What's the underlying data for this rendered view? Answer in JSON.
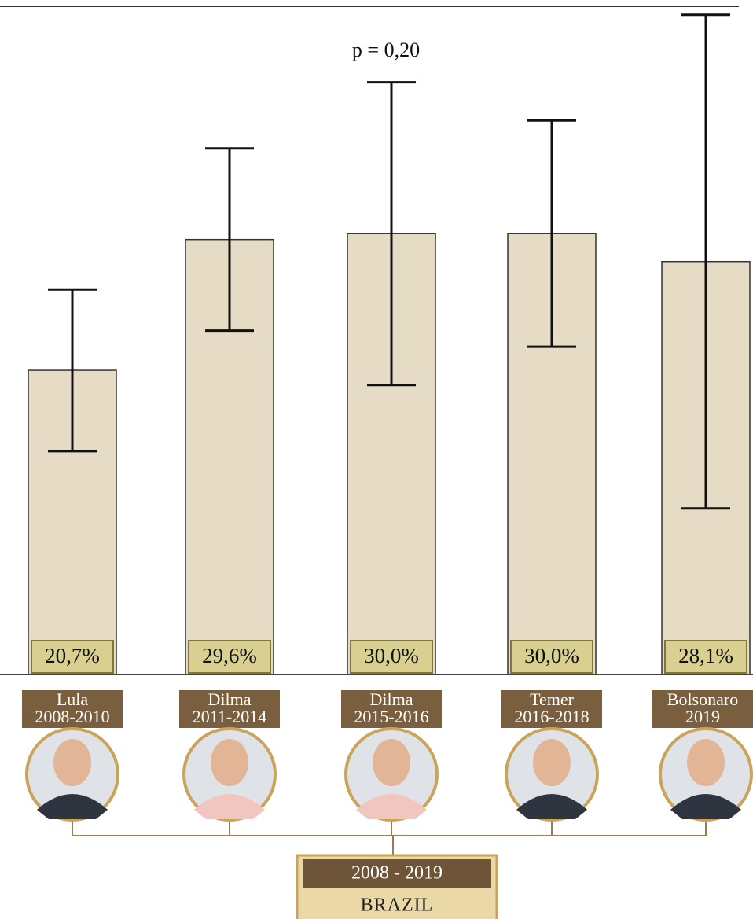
{
  "chart_data": {
    "type": "bar",
    "annotation": "p = 0,20",
    "categories": [
      "Lula",
      "Dilma",
      "Dilma",
      "Temer",
      "Bolsonaro"
    ],
    "periods": [
      "2008-2010",
      "2011-2014",
      "2015-2016",
      "2016-2018",
      "2019"
    ],
    "values": [
      20.7,
      29.6,
      30.0,
      30.0,
      28.1
    ],
    "value_labels": [
      "20,7%",
      "29,6%",
      "30,0%",
      "30,0%",
      "28,1%"
    ],
    "errors": [
      5.5,
      6.2,
      10.3,
      7.7,
      16.8
    ],
    "color": "#e6dcc6",
    "ylim": [
      0,
      45.9
    ],
    "footer": {
      "period": "2008 - 2019",
      "region": "BRAZIL"
    }
  }
}
